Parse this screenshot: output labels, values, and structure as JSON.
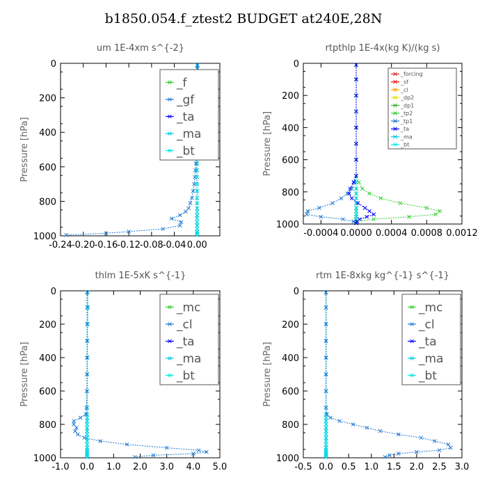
{
  "page_title": "b1850.054.f_ztest2  BUDGET at240E,28N",
  "chart_data": [
    {
      "type": "line",
      "title": "um   1E-4xm  s^{-2}",
      "ylabel": "Pressure  [hPa]",
      "xlim": [
        -0.24,
        0.04
      ],
      "ylim": [
        1000,
        0
      ],
      "xticks": [
        -0.24,
        -0.2,
        -0.16,
        -0.12,
        -0.08,
        -0.04,
        0.0
      ],
      "xticklabels": [
        "-0.24",
        "-0.20",
        "-0.16",
        "-0.12",
        "-0.08",
        "-0.04",
        "0.00"
      ],
      "yticks": [
        0,
        200,
        400,
        600,
        800,
        1000
      ],
      "legend": {
        "placement": "top-right",
        "large": true
      },
      "pressure": [
        10,
        30,
        60,
        100,
        140,
        180,
        220,
        260,
        300,
        340,
        380,
        420,
        460,
        500,
        540,
        580,
        620,
        660,
        700,
        740,
        780,
        810,
        840,
        860,
        880,
        900,
        920,
        940,
        960,
        975,
        985,
        995
      ],
      "series": [
        {
          "name": "_f",
          "color": "#32cd32",
          "values": [
            0,
            0,
            0,
            0,
            0,
            0,
            0,
            0,
            0,
            0,
            0,
            0,
            0,
            0,
            0,
            0,
            0,
            0,
            0,
            0,
            0,
            0,
            0,
            0,
            0,
            0,
            0,
            0,
            0,
            0,
            0,
            0
          ]
        },
        {
          "name": "_gf",
          "color": "#1e78d2",
          "values": [
            0.001,
            0.001,
            0.002,
            0.003,
            0.004,
            0.003,
            0.002,
            0.003,
            0.001,
            0,
            -0.001,
            0,
            -0.001,
            -0.002,
            -0.001,
            -0.002,
            -0.003,
            -0.004,
            -0.005,
            -0.007,
            -0.009,
            -0.012,
            -0.015,
            -0.02,
            -0.03,
            -0.045,
            -0.028,
            -0.03,
            -0.06,
            -0.12,
            -0.16,
            -0.23
          ]
        },
        {
          "name": "_ta",
          "color": "#0000ff",
          "values": [
            0,
            0,
            0,
            0,
            0,
            0,
            0,
            0,
            0,
            0,
            0,
            0,
            0,
            0,
            0,
            0,
            0,
            0,
            0,
            0,
            0,
            0,
            0,
            0,
            0,
            0,
            0,
            0,
            0,
            0,
            0,
            0
          ]
        },
        {
          "name": "_ma",
          "color": "#00c8dc",
          "values": [
            0,
            0,
            0,
            0,
            0,
            0,
            0,
            0,
            0,
            0,
            0,
            0,
            0,
            0,
            0,
            0,
            0,
            0,
            0,
            0,
            0,
            0,
            0,
            0,
            0,
            0,
            0,
            0,
            0,
            0,
            0,
            0
          ]
        },
        {
          "name": "_bt",
          "color": "#00e6e6",
          "values": [
            0,
            0,
            0,
            0,
            0,
            0,
            0,
            0,
            0,
            0,
            0,
            0,
            0,
            0,
            0,
            0,
            0,
            0,
            0,
            0,
            0,
            0,
            0,
            0,
            0,
            0,
            0,
            0,
            0,
            0,
            0,
            0
          ]
        }
      ]
    },
    {
      "type": "line",
      "title": "rtpthlp   1E-4x(kg K)/(kg s)",
      "ylabel": "Pressure  [hPa]",
      "xlim": [
        -0.0006,
        0.0012
      ],
      "ylim": [
        1000,
        0
      ],
      "xticks": [
        -0.0004,
        0,
        0.0004,
        0.0008,
        0.0012
      ],
      "xticklabels": [
        "-0.0004",
        "0.0000",
        "0.0004",
        "0.0008",
        "0.0012"
      ],
      "yticks": [
        0,
        200,
        400,
        600,
        800,
        1000
      ],
      "legend": {
        "placement": "top-right",
        "large": false
      },
      "pressure": [
        10,
        100,
        200,
        300,
        400,
        500,
        600,
        700,
        740,
        780,
        810,
        840,
        870,
        900,
        920,
        940,
        955,
        970,
        985,
        995
      ],
      "series": [
        {
          "name": "_forcing",
          "color": "#dc1e1e",
          "values": [
            0,
            0,
            0,
            0,
            0,
            0,
            0,
            0,
            0,
            0,
            0,
            0,
            0,
            0,
            0,
            0,
            0,
            0,
            0,
            0
          ]
        },
        {
          "name": "_sf",
          "color": "#ff0000",
          "values": [
            0,
            0,
            0,
            0,
            0,
            0,
            0,
            0,
            0,
            0,
            0,
            0,
            0,
            0,
            0,
            0,
            0,
            0,
            0,
            0
          ]
        },
        {
          "name": "_cl",
          "color": "#ffa000",
          "values": [
            0,
            0,
            0,
            0,
            0,
            0,
            0,
            0,
            0,
            0,
            0,
            0,
            0,
            0,
            0,
            0,
            0,
            0,
            0,
            0
          ]
        },
        {
          "name": "_dp2",
          "color": "#e6dc00",
          "values": [
            0,
            0,
            0,
            0,
            0,
            0,
            0,
            0,
            0,
            0,
            0,
            0,
            0,
            0,
            0,
            0,
            0,
            0,
            0,
            0
          ]
        },
        {
          "name": "_dp1",
          "color": "#32b432",
          "values": [
            0,
            0,
            0,
            0,
            0,
            0,
            0,
            0,
            0,
            0,
            0,
            0,
            0,
            0,
            0,
            0,
            0,
            0,
            0,
            0
          ]
        },
        {
          "name": "_tp2",
          "color": "#32cd32",
          "values": [
            0,
            0,
            0,
            0,
            0,
            0,
            0,
            0,
            3e-05,
            7e-05,
            0.00015,
            0.00028,
            0.0005,
            0.0008,
            0.00095,
            0.0009,
            0.0006,
            0.0002,
            0,
            0
          ]
        },
        {
          "name": "_tp1",
          "color": "#1e78d2",
          "values": [
            0,
            0,
            0,
            0,
            0,
            0,
            0,
            0,
            -2e-05,
            -5e-05,
            -0.0001,
            -0.00017,
            -0.00027,
            -0.00042,
            -0.00055,
            -0.00056,
            -0.0004,
            -0.00015,
            -3e-05,
            0
          ]
        },
        {
          "name": "_ta",
          "color": "#0000ff",
          "values": [
            0,
            0,
            0,
            0,
            0,
            0,
            0,
            0,
            -3e-05,
            -7e-05,
            -8e-05,
            -5e-05,
            2e-05,
            0.0001,
            0.00015,
            0.0002,
            0.00012,
            4e-05,
            1e-05,
            0
          ]
        },
        {
          "name": "_ma",
          "color": "#00c8dc",
          "values": [
            0,
            0,
            0,
            0,
            0,
            0,
            0,
            0,
            0,
            0,
            0,
            0,
            0,
            0,
            0,
            0,
            0,
            0,
            0,
            0
          ]
        },
        {
          "name": "_bt",
          "color": "#00e6e6",
          "values": [
            0,
            0,
            0,
            0,
            0,
            0,
            0,
            0,
            0,
            0,
            0,
            0,
            0,
            0,
            0,
            0,
            0,
            0,
            0,
            0
          ]
        }
      ]
    },
    {
      "type": "line",
      "title": "thlm   1E-5xK  s^{-1}",
      "ylabel": "Pressure  [hPa]",
      "xlim": [
        -1.0,
        5.0
      ],
      "ylim": [
        1000,
        0
      ],
      "xticks": [
        -1,
        0,
        1,
        2,
        3,
        4,
        5
      ],
      "xticklabels": [
        "-1.0",
        "0.0",
        "1.0",
        "2.0",
        "3.0",
        "4.0",
        "5.0"
      ],
      "yticks": [
        0,
        200,
        400,
        600,
        800,
        1000
      ],
      "legend": {
        "placement": "top-right",
        "large": true
      },
      "pressure": [
        10,
        100,
        200,
        300,
        400,
        500,
        600,
        700,
        740,
        760,
        780,
        800,
        820,
        840,
        860,
        880,
        900,
        920,
        940,
        955,
        965,
        975,
        985,
        995
      ],
      "series": [
        {
          "name": "_mc",
          "color": "#32cd32",
          "values": [
            0,
            0,
            0,
            0,
            0,
            0,
            0,
            0,
            0,
            0,
            0,
            0,
            0,
            0,
            0,
            0,
            0,
            0,
            0,
            0,
            0,
            0,
            0,
            0
          ]
        },
        {
          "name": "_cl",
          "color": "#1e78d2",
          "values": [
            0.02,
            0.03,
            0.02,
            0.01,
            0.01,
            0,
            -0.01,
            -0.02,
            -0.05,
            -0.25,
            -0.5,
            -0.5,
            -0.4,
            -0.45,
            -0.35,
            -0.1,
            0.5,
            1.5,
            3.0,
            4.2,
            4.5,
            4.0,
            2.5,
            1.8
          ]
        },
        {
          "name": "_ta",
          "color": "#0000ff",
          "values": [
            0,
            0,
            0,
            0,
            0,
            0,
            0,
            0,
            0,
            0,
            0,
            0,
            0,
            0,
            0,
            0,
            0,
            0,
            0,
            0,
            0,
            0,
            0,
            0
          ]
        },
        {
          "name": "_ma",
          "color": "#00c8dc",
          "values": [
            0,
            0,
            0,
            0,
            0,
            0,
            0,
            0,
            0,
            0,
            0,
            0,
            0,
            0,
            0,
            0,
            0,
            0,
            0,
            0,
            0,
            0,
            0,
            0
          ]
        },
        {
          "name": "_bt",
          "color": "#00e6e6",
          "values": [
            0,
            0,
            0,
            0,
            0,
            0,
            0,
            0,
            0,
            0,
            0,
            0,
            0,
            0,
            0,
            0,
            0,
            0,
            0,
            0,
            0,
            0,
            0,
            0
          ]
        }
      ]
    },
    {
      "type": "line",
      "title": "rtm   1E-8xkg  kg^{-1}  s^{-1}",
      "ylabel": "Pressure  [hPa]",
      "xlim": [
        -0.5,
        3.0
      ],
      "ylim": [
        1000,
        0
      ],
      "xticks": [
        -0.5,
        0,
        0.5,
        1.0,
        1.5,
        2.0,
        2.5,
        3.0
      ],
      "xticklabels": [
        "-0.5",
        "0.0",
        "0.5",
        "1.0",
        "1.5",
        "2.0",
        "2.5",
        "3.0"
      ],
      "yticks": [
        0,
        200,
        400,
        600,
        800,
        1000
      ],
      "legend": {
        "placement": "top-right",
        "large": true
      },
      "pressure": [
        10,
        100,
        200,
        300,
        400,
        500,
        600,
        700,
        740,
        760,
        780,
        800,
        820,
        840,
        860,
        880,
        900,
        920,
        940,
        955,
        965,
        975,
        985,
        995
      ],
      "series": [
        {
          "name": "_mc",
          "color": "#32cd32",
          "values": [
            0,
            0,
            0,
            0,
            0,
            0,
            0,
            0,
            0,
            0,
            0,
            0,
            0,
            0,
            0,
            0,
            0,
            0,
            0,
            0,
            0,
            0,
            0,
            0
          ]
        },
        {
          "name": "_cl",
          "color": "#1e78d2",
          "values": [
            0,
            0,
            0,
            0,
            0,
            0,
            0,
            0,
            0.02,
            0.1,
            0.3,
            0.6,
            0.9,
            1.2,
            1.6,
            2.1,
            2.4,
            2.7,
            2.75,
            2.5,
            2.0,
            1.6,
            1.4,
            1.3
          ]
        },
        {
          "name": "_ta",
          "color": "#0000ff",
          "values": [
            0,
            0,
            0,
            0,
            0,
            0,
            0,
            0,
            0,
            0,
            0,
            0,
            0,
            0,
            0,
            0,
            0,
            0,
            0,
            0,
            0,
            0,
            0,
            0
          ]
        },
        {
          "name": "_ma",
          "color": "#00c8dc",
          "values": [
            0,
            0,
            0,
            0,
            0,
            0,
            0,
            0,
            0,
            0,
            0,
            0,
            0,
            0,
            0,
            0,
            0,
            0,
            0,
            0,
            0,
            0,
            0,
            0
          ]
        },
        {
          "name": "_bt",
          "color": "#00e6e6",
          "values": [
            0,
            0,
            0,
            0,
            0,
            0,
            0,
            0,
            0,
            0,
            0,
            0,
            0,
            0,
            0,
            0,
            0,
            0,
            0,
            0,
            0,
            0,
            0,
            0
          ]
        }
      ]
    }
  ]
}
